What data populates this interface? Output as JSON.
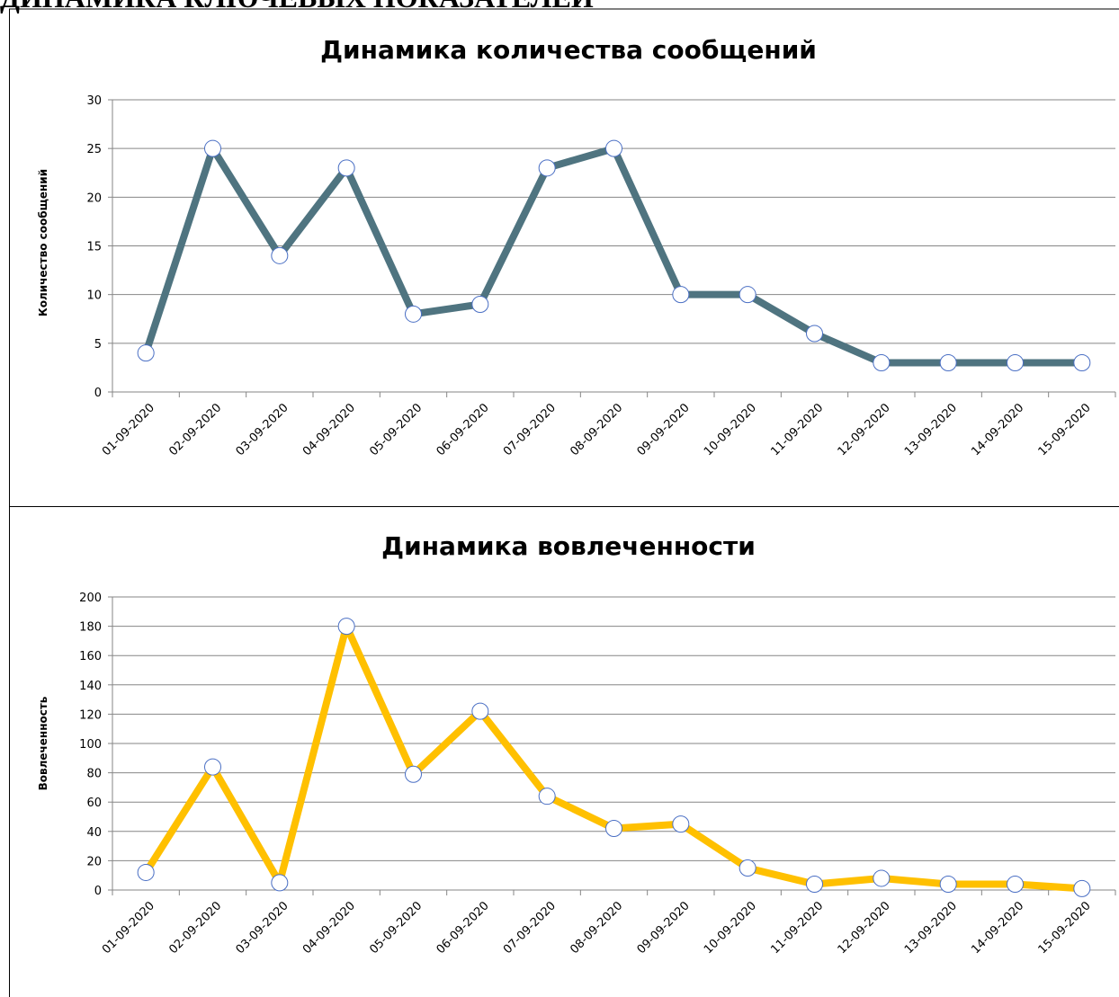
{
  "heading": "ДИНАМИКА КЛЮЧЕВЫХ ПОКАЗАТЕЛЕЙ",
  "chart_data": [
    {
      "type": "line",
      "title": "Динамика количества сообщений",
      "y_label": "Количество сообщений",
      "categories": [
        "01-09-2020",
        "02-09-2020",
        "03-09-2020",
        "04-09-2020",
        "05-09-2020",
        "06-09-2020",
        "07-09-2020",
        "08-09-2020",
        "09-09-2020",
        "10-09-2020",
        "11-09-2020",
        "12-09-2020",
        "13-09-2020",
        "14-09-2020",
        "15-09-2020"
      ],
      "values": [
        4,
        25,
        14,
        23,
        8,
        9,
        23,
        25,
        10,
        10,
        6,
        3,
        3,
        3,
        3
      ],
      "color": "#4f7480",
      "marker_color": "#4a6fc4",
      "ylim": [
        0,
        30
      ],
      "yticks": [
        0,
        5,
        10,
        15,
        20,
        25,
        30
      ],
      "grid": true
    },
    {
      "type": "line",
      "title": "Динамика вовлеченности",
      "y_label": "Вовлеченность",
      "categories": [
        "01-09-2020",
        "02-09-2020",
        "03-09-2020",
        "04-09-2020",
        "05-09-2020",
        "06-09-2020",
        "07-09-2020",
        "08-09-2020",
        "09-09-2020",
        "10-09-2020",
        "11-09-2020",
        "12-09-2020",
        "13-09-2020",
        "14-09-2020",
        "15-09-2020"
      ],
      "values": [
        12,
        84,
        5,
        180,
        79,
        122,
        64,
        42,
        45,
        15,
        4,
        8,
        4,
        4,
        1
      ],
      "color": "#ffc000",
      "marker_color": "#4a6fc4",
      "ylim": [
        0,
        200
      ],
      "yticks": [
        0,
        20,
        40,
        60,
        80,
        100,
        120,
        140,
        160,
        180,
        200
      ],
      "grid": true
    }
  ]
}
